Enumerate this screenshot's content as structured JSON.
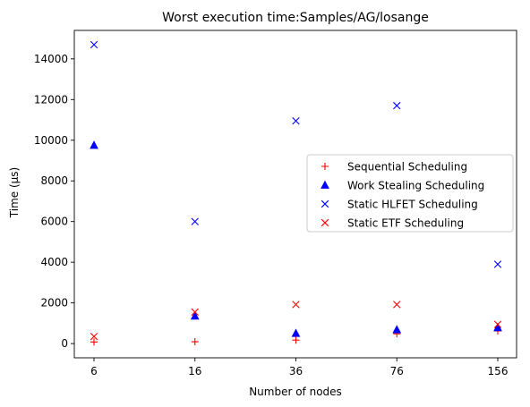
{
  "chart_data": {
    "type": "scatter",
    "title": "Worst execution time:Samples/AG/losange",
    "xlabel": "Number of nodes",
    "ylabel": "Time (µs)",
    "categories": [
      "6",
      "16",
      "36",
      "76",
      "156"
    ],
    "ylim": [
      -700,
      15400
    ],
    "yticks": [
      0,
      2000,
      4000,
      6000,
      8000,
      10000,
      12000,
      14000
    ],
    "grid": false,
    "legend_position": "center-right",
    "series": [
      {
        "name": "Sequential Scheduling",
        "marker": "plus",
        "color": "#ff0000",
        "values": [
          80,
          90,
          170,
          480,
          620
        ]
      },
      {
        "name": "Work Stealing Scheduling",
        "marker": "triangle",
        "color": "#0000ff",
        "values": [
          9750,
          1350,
          500,
          680,
          780
        ]
      },
      {
        "name": "Static HLFET Scheduling",
        "marker": "x",
        "color": "#0000ff",
        "values": [
          14700,
          6000,
          10950,
          11700,
          3900
        ]
      },
      {
        "name": "Static ETF Scheduling",
        "marker": "x",
        "color": "#ff0000",
        "values": [
          350,
          1550,
          1920,
          1920,
          940
        ]
      }
    ]
  }
}
